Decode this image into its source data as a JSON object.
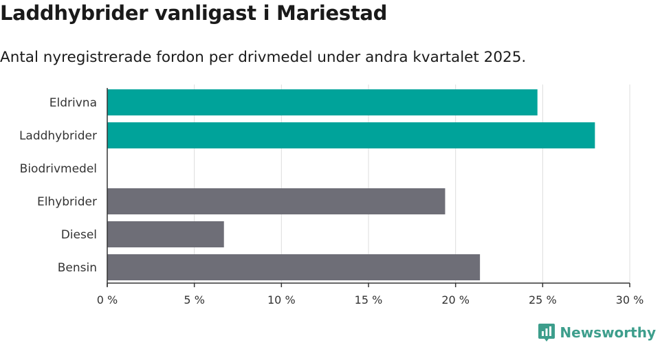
{
  "header": {
    "title": "Laddhybrider vanligast i Mariestad",
    "subtitle": "Antal nyregistrerade fordon per drivmedel under andra kvartalet 2025."
  },
  "brand": {
    "name": "Newsworthy",
    "icon": "newsworthy-logo-icon",
    "color": "#3d9e8c"
  },
  "colors": {
    "highlight": "#00a39a",
    "default": "#6e6e77",
    "grid": "#dcdcdc",
    "axis": "#333333"
  },
  "chart_data": {
    "type": "bar",
    "orientation": "horizontal",
    "categories": [
      "Eldrivna",
      "Laddhybrider",
      "Biodrivmedel",
      "Elhybrider",
      "Diesel",
      "Bensin"
    ],
    "values": [
      24.7,
      28.0,
      0,
      19.4,
      6.7,
      21.4
    ],
    "highlighted": [
      true,
      true,
      false,
      false,
      false,
      false
    ],
    "xlim": [
      0,
      30
    ],
    "ticks": [
      0,
      5,
      10,
      15,
      20,
      25,
      30
    ],
    "tick_labels": [
      "0 %",
      "5 %",
      "10 %",
      "15 %",
      "20 %",
      "25 %",
      "30 %"
    ],
    "grid": true
  }
}
